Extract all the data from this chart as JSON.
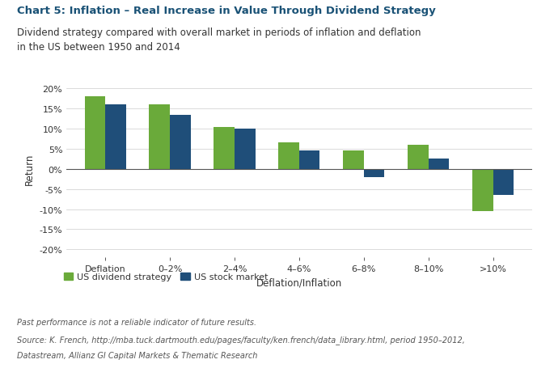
{
  "title": "Chart 5: Inflation – Real Increase in Value Through Dividend Strategy",
  "subtitle": "Dividend strategy compared with overall market in periods of inflation and deflation\nin the US between 1950 and 2014",
  "categories": [
    "Deflation",
    "0–2%",
    "2–4%",
    "4–6%",
    "6–8%",
    "8–10%",
    ">10%"
  ],
  "dividend_strategy": [
    18.0,
    16.0,
    10.5,
    6.5,
    4.5,
    6.0,
    -10.5
  ],
  "stock_market": [
    16.0,
    13.5,
    10.0,
    4.5,
    -2.0,
    2.5,
    -6.5
  ],
  "xlabel": "Deflation/Inflation",
  "ylabel": "Return",
  "ylim": [
    -22,
    22
  ],
  "yticks": [
    -20,
    -15,
    -10,
    -5,
    0,
    5,
    10,
    15,
    20
  ],
  "ytick_labels": [
    "-20%",
    "-15%",
    "-10%",
    "-5%",
    "0%",
    "5%",
    "10%",
    "15%",
    "20%"
  ],
  "color_dividend": "#6aaa3a",
  "color_market": "#1f4e79",
  "legend_label_1": "US dividend strategy",
  "legend_label_2": "US stock market",
  "footnote_1": "Past performance is not a reliable indicator of future results.",
  "footnote_2": "Source: K. French, http://mba.tuck.dartmouth.edu/pages/faculty/ken.french/data_library.html, period 1950–2012,",
  "footnote_3": "Datastream, Allianz GI Capital Markets & Thematic Research",
  "title_color": "#1a5276",
  "subtitle_color": "#333333",
  "bar_width": 0.32,
  "background_color": "#ffffff"
}
